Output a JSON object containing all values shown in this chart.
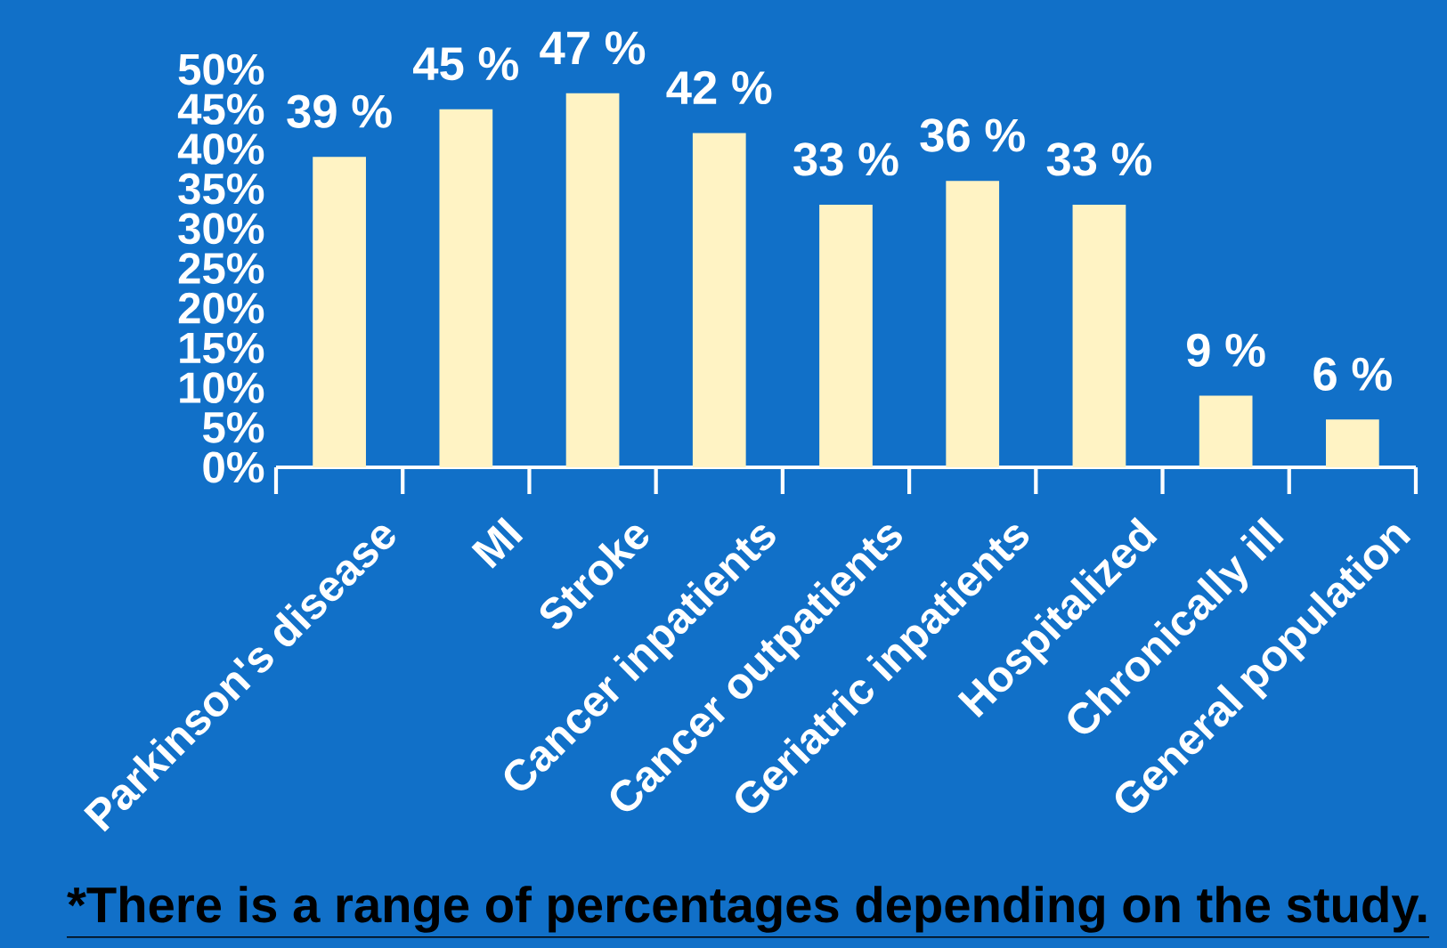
{
  "chart_data": {
    "type": "bar",
    "categories": [
      "Parkinson's disease",
      "MI",
      "Stroke",
      "Cancer inpatients",
      "Cancer outpatients",
      "Geriatric inpatients",
      "Hospitalized",
      "Chronically ill",
      "General population"
    ],
    "values": [
      39,
      45,
      47,
      42,
      33,
      36,
      33,
      9,
      6
    ],
    "value_labels": [
      "39 %",
      "45 %",
      "47 %",
      "42 %",
      "33 %",
      "36 %",
      "33 %",
      "9 %",
      "6 %"
    ],
    "color": "#fff3c4",
    "ylim": [
      0,
      50
    ],
    "yticks": [
      {
        "value": 0,
        "label": "0%"
      },
      {
        "value": 5,
        "label": "5%"
      },
      {
        "value": 10,
        "label": "10%"
      },
      {
        "value": 15,
        "label": "15%"
      },
      {
        "value": 20,
        "label": "20%"
      },
      {
        "value": 25,
        "label": "25%"
      },
      {
        "value": 30,
        "label": "30%"
      },
      {
        "value": 35,
        "label": "35%"
      },
      {
        "value": 40,
        "label": "40%"
      },
      {
        "value": 45,
        "label": "45%"
      },
      {
        "value": 50,
        "label": "50%"
      }
    ],
    "annotations": [
      "*There is a range of percentages depending on the study."
    ]
  }
}
